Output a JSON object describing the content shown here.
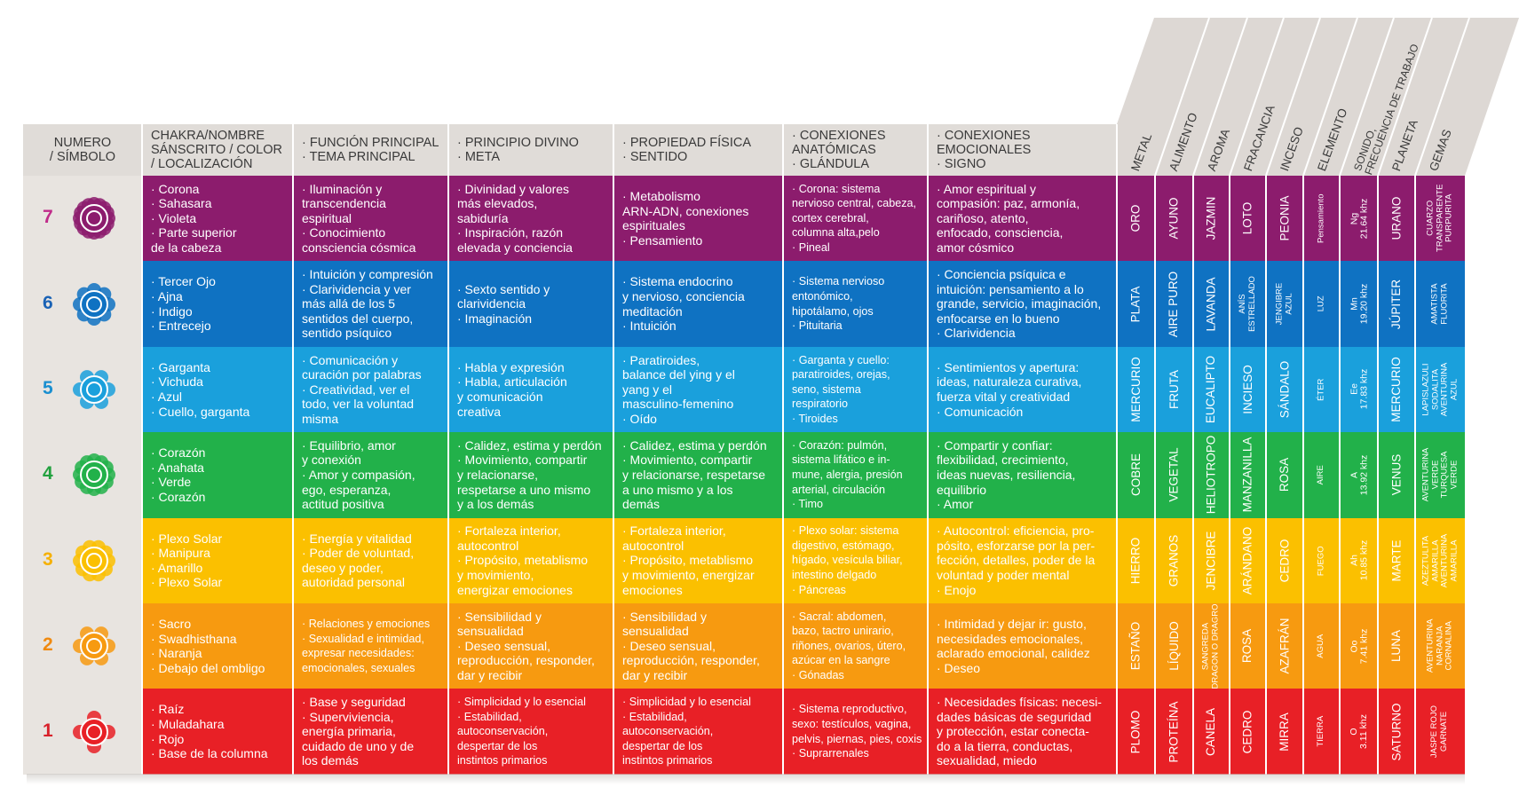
{
  "header": {
    "col1": [
      "NUMERO",
      "/ SÍMBOLO"
    ],
    "col2": [
      "CHAKRA/NOMBRE",
      "SÁNSCRITO / COLOR",
      "/ LOCALIZACIÓN"
    ],
    "col3": [
      "· FUNCIÓN PRINCIPAL",
      "· TEMA PRINCIPAL"
    ],
    "col4": [
      "· PRINCIPIO DIVINO",
      "· META"
    ],
    "col5": [
      "· PROPIEDAD FÍSICA",
      "· SENTIDO"
    ],
    "col6": [
      "· CONEXIONES",
      "ANATÓMICAS",
      "· GLÁNDULA"
    ],
    "col7": [
      "· CONEXIONES",
      "EMOCIONALES",
      "· SIGNO"
    ],
    "vertical": [
      [
        "METAL"
      ],
      [
        "ALIMENTO"
      ],
      [
        "AROMA"
      ],
      [
        "FRACANCIA"
      ],
      [
        "INCESO"
      ],
      [
        "ELEMENTO"
      ],
      [
        "SONIDO,",
        "FRECUENCIA DE TRABAJO"
      ],
      [
        "PLANETA"
      ],
      [
        "GEMAS"
      ]
    ]
  },
  "colors": {
    "7": "#8c1c6d",
    "6": "#0f72c2",
    "5": "#1aa0dc",
    "4": "#22b14a",
    "3": "#fbc000",
    "2": "#f79a10",
    "1": "#e82026"
  },
  "rows": [
    {
      "num": "7",
      "color": "#8c1c6d",
      "numcolor": "#c02b8a",
      "icon": "crown-chakra-icon",
      "c2": [
        "· Corona",
        "· Sahasara",
        "· Violeta",
        "· Parte superior",
        "  de la cabeza"
      ],
      "c3": [
        "· Iluminación y",
        "  transcendencia",
        "  espiritual",
        "· Conocimiento",
        "  consciencia cósmica"
      ],
      "c4": [
        "· Divinidad y valores",
        "  más elevados,",
        "  sabiduría",
        "· Inspiración, razón",
        "  elevada y conciencia"
      ],
      "c5": [
        "· Metabolismo",
        "  ARN-ADN, conexiones",
        "  espirituales",
        "· Pensamiento"
      ],
      "c6": [
        "· Corona: sistema",
        "  nervioso central, cabeza,",
        "  cortex cerebral,",
        "  columna alta,pelo",
        "· Pineal"
      ],
      "c7": [
        "· Amor espiritual y",
        "  compasión: paz, armonía,",
        "  cariñoso, atento,",
        "  enfocado, consciencia,",
        "  amor cósmico"
      ],
      "r": [
        [
          "ORO"
        ],
        [
          "AYUNO"
        ],
        [
          "JAZMIN"
        ],
        [
          "LOTO"
        ],
        [
          "PEONIA"
        ],
        [
          "Pensamiento"
        ],
        [
          "Ng",
          "21.64 khz"
        ],
        [
          "URANO"
        ],
        [
          "CUARZO",
          "TRANSPARENTE",
          "PURPURITA"
        ]
      ]
    },
    {
      "num": "6",
      "color": "#0f72c2",
      "numcolor": "#1a62b5",
      "icon": "third-eye-chakra-icon",
      "c2": [
        "· Tercer Ojo",
        "· Ajna",
        "· Indigo",
        "· Entrecejo"
      ],
      "c3": [
        "· Intuición y compresión",
        "· Clarividencia y ver",
        "  más allá de los 5",
        "  sentidos del cuerpo,",
        "  sentido psíquico"
      ],
      "c4": [
        "· Sexto sentido y",
        "  clarividencia",
        "· Imaginación"
      ],
      "c5": [
        "· Sistema endocrino",
        "  y nervioso, conciencia",
        "  meditación",
        "· Intuición"
      ],
      "c6": [
        "· Sistema nervioso",
        "  entonómico,",
        "  hipotálamo, ojos",
        "· Pituitaria"
      ],
      "c7": [
        "· Conciencia psíquica e",
        "  intuición: pensamiento a lo",
        "  grande, servicio, imaginación,",
        "  enfocarse en lo bueno",
        "· Clarividencia"
      ],
      "r": [
        [
          "PLATA"
        ],
        [
          "AIRE PURO"
        ],
        [
          "LAVANDA"
        ],
        [
          "ANÍS",
          "ESTRELLADO"
        ],
        [
          "JENGIBRE",
          "AZUL"
        ],
        [
          "LUZ"
        ],
        [
          "Mn",
          "19.20 khz"
        ],
        [
          "JÚPITER"
        ],
        [
          "AMATISTA",
          "FLUORITA"
        ]
      ]
    },
    {
      "num": "5",
      "color": "#1aa0dc",
      "numcolor": "#1a8fd0",
      "icon": "throat-chakra-icon",
      "c2": [
        "· Garganta",
        "· Vichuda",
        "· Azul",
        "· Cuello, garganta"
      ],
      "c3": [
        "· Comunicación y",
        "  curación por palabras",
        "· Creatividad, ver el",
        "  todo, ver la voluntad",
        "  misma"
      ],
      "c4": [
        "· Habla y expresión",
        "· Habla, articulación",
        "  y comunicación",
        "  creativa"
      ],
      "c5": [
        "· Paratiroides,",
        "  balance del ying y el",
        "  yang y el",
        "  masculino-femenino",
        "· Oído"
      ],
      "c6": [
        "· Garganta y cuello:",
        "  paratiroides, orejas,",
        "  seno, sistema",
        "  respiratorio",
        "· Tiroides"
      ],
      "c7": [
        "· Sentimientos y apertura:",
        "  ideas, naturaleza curativa,",
        "  fuerza vital y creatividad",
        "· Comunicación"
      ],
      "r": [
        [
          "MERCURIO"
        ],
        [
          "FRUTA"
        ],
        [
          "EUCALIPTO"
        ],
        [
          "INCIESO"
        ],
        [
          "SÁNDALO"
        ],
        [
          "ÉTER"
        ],
        [
          "Ee",
          "17.83 khz"
        ],
        [
          "MERCURIO"
        ],
        [
          "LAPISLAZULI",
          "SODALITA",
          "AVENTURINA",
          "AZUL"
        ]
      ]
    },
    {
      "num": "4",
      "color": "#22b14a",
      "numcolor": "#22a13f",
      "icon": "heart-chakra-icon",
      "c2": [
        "· Corazón",
        "· Anahata",
        "· Verde",
        "· Corazón"
      ],
      "c3": [
        "· Equilibrio, amor",
        "  y conexión",
        "· Amor y compasión,",
        "  ego, esperanza,",
        "  actitud positiva"
      ],
      "c4": [
        "· Calidez, estima y perdón",
        "· Movimiento, compartir",
        "  y relacionarse,",
        "  respetarse a uno mismo",
        "  y a los demás"
      ],
      "c5": [
        "· Calidez, estima y perdón",
        "· Movimiento, compartir",
        "  y relacionarse, respetarse",
        "  a uno mismo y a los",
        "  demás"
      ],
      "c6": [
        "· Corazón: pulmón,",
        "  sistema lifático e in-",
        "  mune, alergia, presión",
        "  arterial, circulación",
        "· Timo"
      ],
      "c7": [
        "· Compartir y confiar:",
        "  flexibilidad, crecimiento,",
        "  ideas nuevas, resiliencia,",
        "  equilibrio",
        "· Amor"
      ],
      "r": [
        [
          "COBRE"
        ],
        [
          "VEGETAL"
        ],
        [
          "HELIOTROPO"
        ],
        [
          "MANZANILLA"
        ],
        [
          "ROSA"
        ],
        [
          "AIRE"
        ],
        [
          "A",
          "13.92 khz"
        ],
        [
          "VENUS"
        ],
        [
          "AVENTURINA",
          "VERDE",
          "TURQUESA",
          "VERDE"
        ]
      ]
    },
    {
      "num": "3",
      "color": "#fbc000",
      "numcolor": "#f5b000",
      "icon": "solar-plexus-chakra-icon",
      "c2": [
        "· Plexo Solar",
        "· Manipura",
        "· Amarillo",
        "· Plexo Solar"
      ],
      "c3": [
        "· Energía y vitalidad",
        "· Poder de voluntad,",
        "  deseo y poder,",
        "  autoridad personal"
      ],
      "c4": [
        "· Fortaleza interior,",
        "  autocontrol",
        "· Propósito, metablismo",
        "  y movimiento,",
        "  energizar emociones"
      ],
      "c5": [
        "· Fortaleza interior,",
        "  autocontrol",
        "· Propósito, metablismo",
        "  y movimiento, energizar",
        "  emociones"
      ],
      "c6": [
        "· Plexo solar: sistema",
        "  digestivo, estómago,",
        "  hígado, vesícula biliar,",
        "  intestino delgado",
        "· Páncreas"
      ],
      "c7": [
        "· Autocontrol: eficiencia, pro-",
        "  pósito, esforzarse por la per-",
        "  fección, detalles, poder de la",
        "  voluntad y poder mental",
        "· Enojo"
      ],
      "r": [
        [
          "HIERRO"
        ],
        [
          "GRANOS"
        ],
        [
          "JENCIBRE"
        ],
        [
          "ARÁNDANO"
        ],
        [
          "CEDRO"
        ],
        [
          "FUEGO"
        ],
        [
          "Ah",
          "10.85 khz"
        ],
        [
          "MARTE"
        ],
        [
          "AZEZTULITA",
          "AMARILLA",
          "AVENTURINA",
          "AMARILLA"
        ]
      ]
    },
    {
      "num": "2",
      "color": "#f79a10",
      "numcolor": "#f08a10",
      "icon": "sacral-chakra-icon",
      "c2": [
        "· Sacro",
        "· Swadhisthana",
        "· Naranja",
        "· Debajo del ombligo"
      ],
      "c3": [
        "· Relaciones y emociones",
        "· Sexualidad e intimidad,",
        "  expresar necesidades:",
        "  emocionales, sexuales"
      ],
      "c4": [
        "· Sensibilidad y",
        "  sensualidad",
        "· Deseo sensual,",
        "  reproducción, responder,",
        "  dar y recibir"
      ],
      "c5": [
        "· Sensibilidad y",
        "  sensualidad",
        "· Deseo sensual,",
        "  reproducción, responder,",
        "  dar y recibir"
      ],
      "c6": [
        "· Sacral: abdomen,",
        "  bazo, tactro unirario,",
        "  riñones, ovarios, útero,",
        "  azúcar en la sangre",
        "· Gónadas"
      ],
      "c7": [
        "· Intimidad y dejar ir: gusto,",
        "  necesidades emocionales,",
        "  aclarado emocional, calidez",
        "· Deseo"
      ],
      "r": [
        [
          "ESTAÑO"
        ],
        [
          "LÍQUIDO"
        ],
        [
          "SANGREDA",
          "DRAGON O DRAGRO"
        ],
        [
          "ROSA"
        ],
        [
          "AZAFRÁN"
        ],
        [
          "AGUA"
        ],
        [
          "Oo",
          "7.41 khz"
        ],
        [
          "LUNA"
        ],
        [
          "AVENTURINA",
          "NARANJA",
          "CORNALINA"
        ]
      ]
    },
    {
      "num": "1",
      "color": "#e82026",
      "numcolor": "#d8202a",
      "icon": "root-chakra-icon",
      "c2": [
        "· Raíz",
        "· Muladahara",
        "· Rojo",
        "· Base de la columna"
      ],
      "c3": [
        "· Base y seguridad",
        "· Superviviencia,",
        "  energía primaria,",
        "  cuidado de uno y de",
        "  los demás"
      ],
      "c4": [
        "· Simplicidad y lo esencial",
        "· Estabilidad,",
        "  autoconservación,",
        "  despertar de los",
        "  instintos primarios"
      ],
      "c5": [
        "· Simplicidad y lo esencial",
        "· Estabilidad,",
        "  autoconservación,",
        "  despertar de los",
        "  instintos primarios"
      ],
      "c6": [
        "· Sistema reproductivo,",
        "  sexo: testículos, vagina,",
        "  pelvis, piernas, pies, coxis",
        "· Suprarrenales"
      ],
      "c7": [
        "· Necesidades físicas: necesi-",
        "  dades básicas de seguridad",
        "  y protección, estar conecta-",
        "  do a la tierra, conductas,",
        "  sexualidad, miedo"
      ],
      "r": [
        [
          "PLOMO"
        ],
        [
          "PROTEÍNA"
        ],
        [
          "CANELA"
        ],
        [
          "CEDRO"
        ],
        [
          "MIRRA"
        ],
        [
          "TIERRA"
        ],
        [
          "O",
          "3.11 khz"
        ],
        [
          "SATURNO"
        ],
        [
          "JASPE ROJO",
          "GARNATE"
        ]
      ]
    }
  ]
}
